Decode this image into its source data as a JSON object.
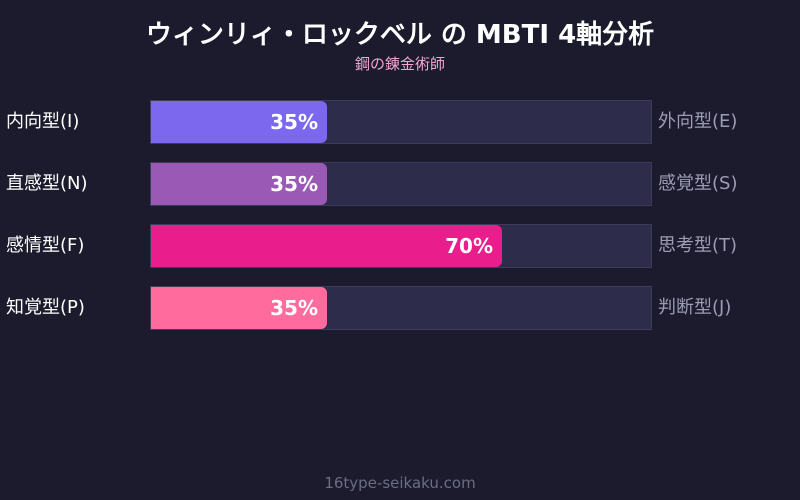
{
  "chart_data": {
    "type": "bar",
    "orientation": "horizontal",
    "stacked_scale": [
      0,
      100
    ],
    "title": "ウィンリィ・ロックベル の MBTI 4軸分析",
    "subtitle": "鋼の錬金術師",
    "rows": [
      {
        "left_label": "内向型(I)",
        "right_label": "外向型(E)",
        "value": 35,
        "value_label": "35%",
        "color": "#7b68ee"
      },
      {
        "left_label": "直感型(N)",
        "right_label": "感覚型(S)",
        "value": 35,
        "value_label": "35%",
        "color": "#9b59b6"
      },
      {
        "left_label": "感情型(F)",
        "right_label": "思考型(T)",
        "value": 70,
        "value_label": "70%",
        "color": "#e91e8c"
      },
      {
        "left_label": "知覚型(P)",
        "right_label": "判断型(J)",
        "value": 35,
        "value_label": "35%",
        "color": "#ff6b9d"
      }
    ],
    "track_color": "#2d2c4a",
    "grid": false,
    "legend": "none"
  },
  "footer": "16type-seikaku.com"
}
